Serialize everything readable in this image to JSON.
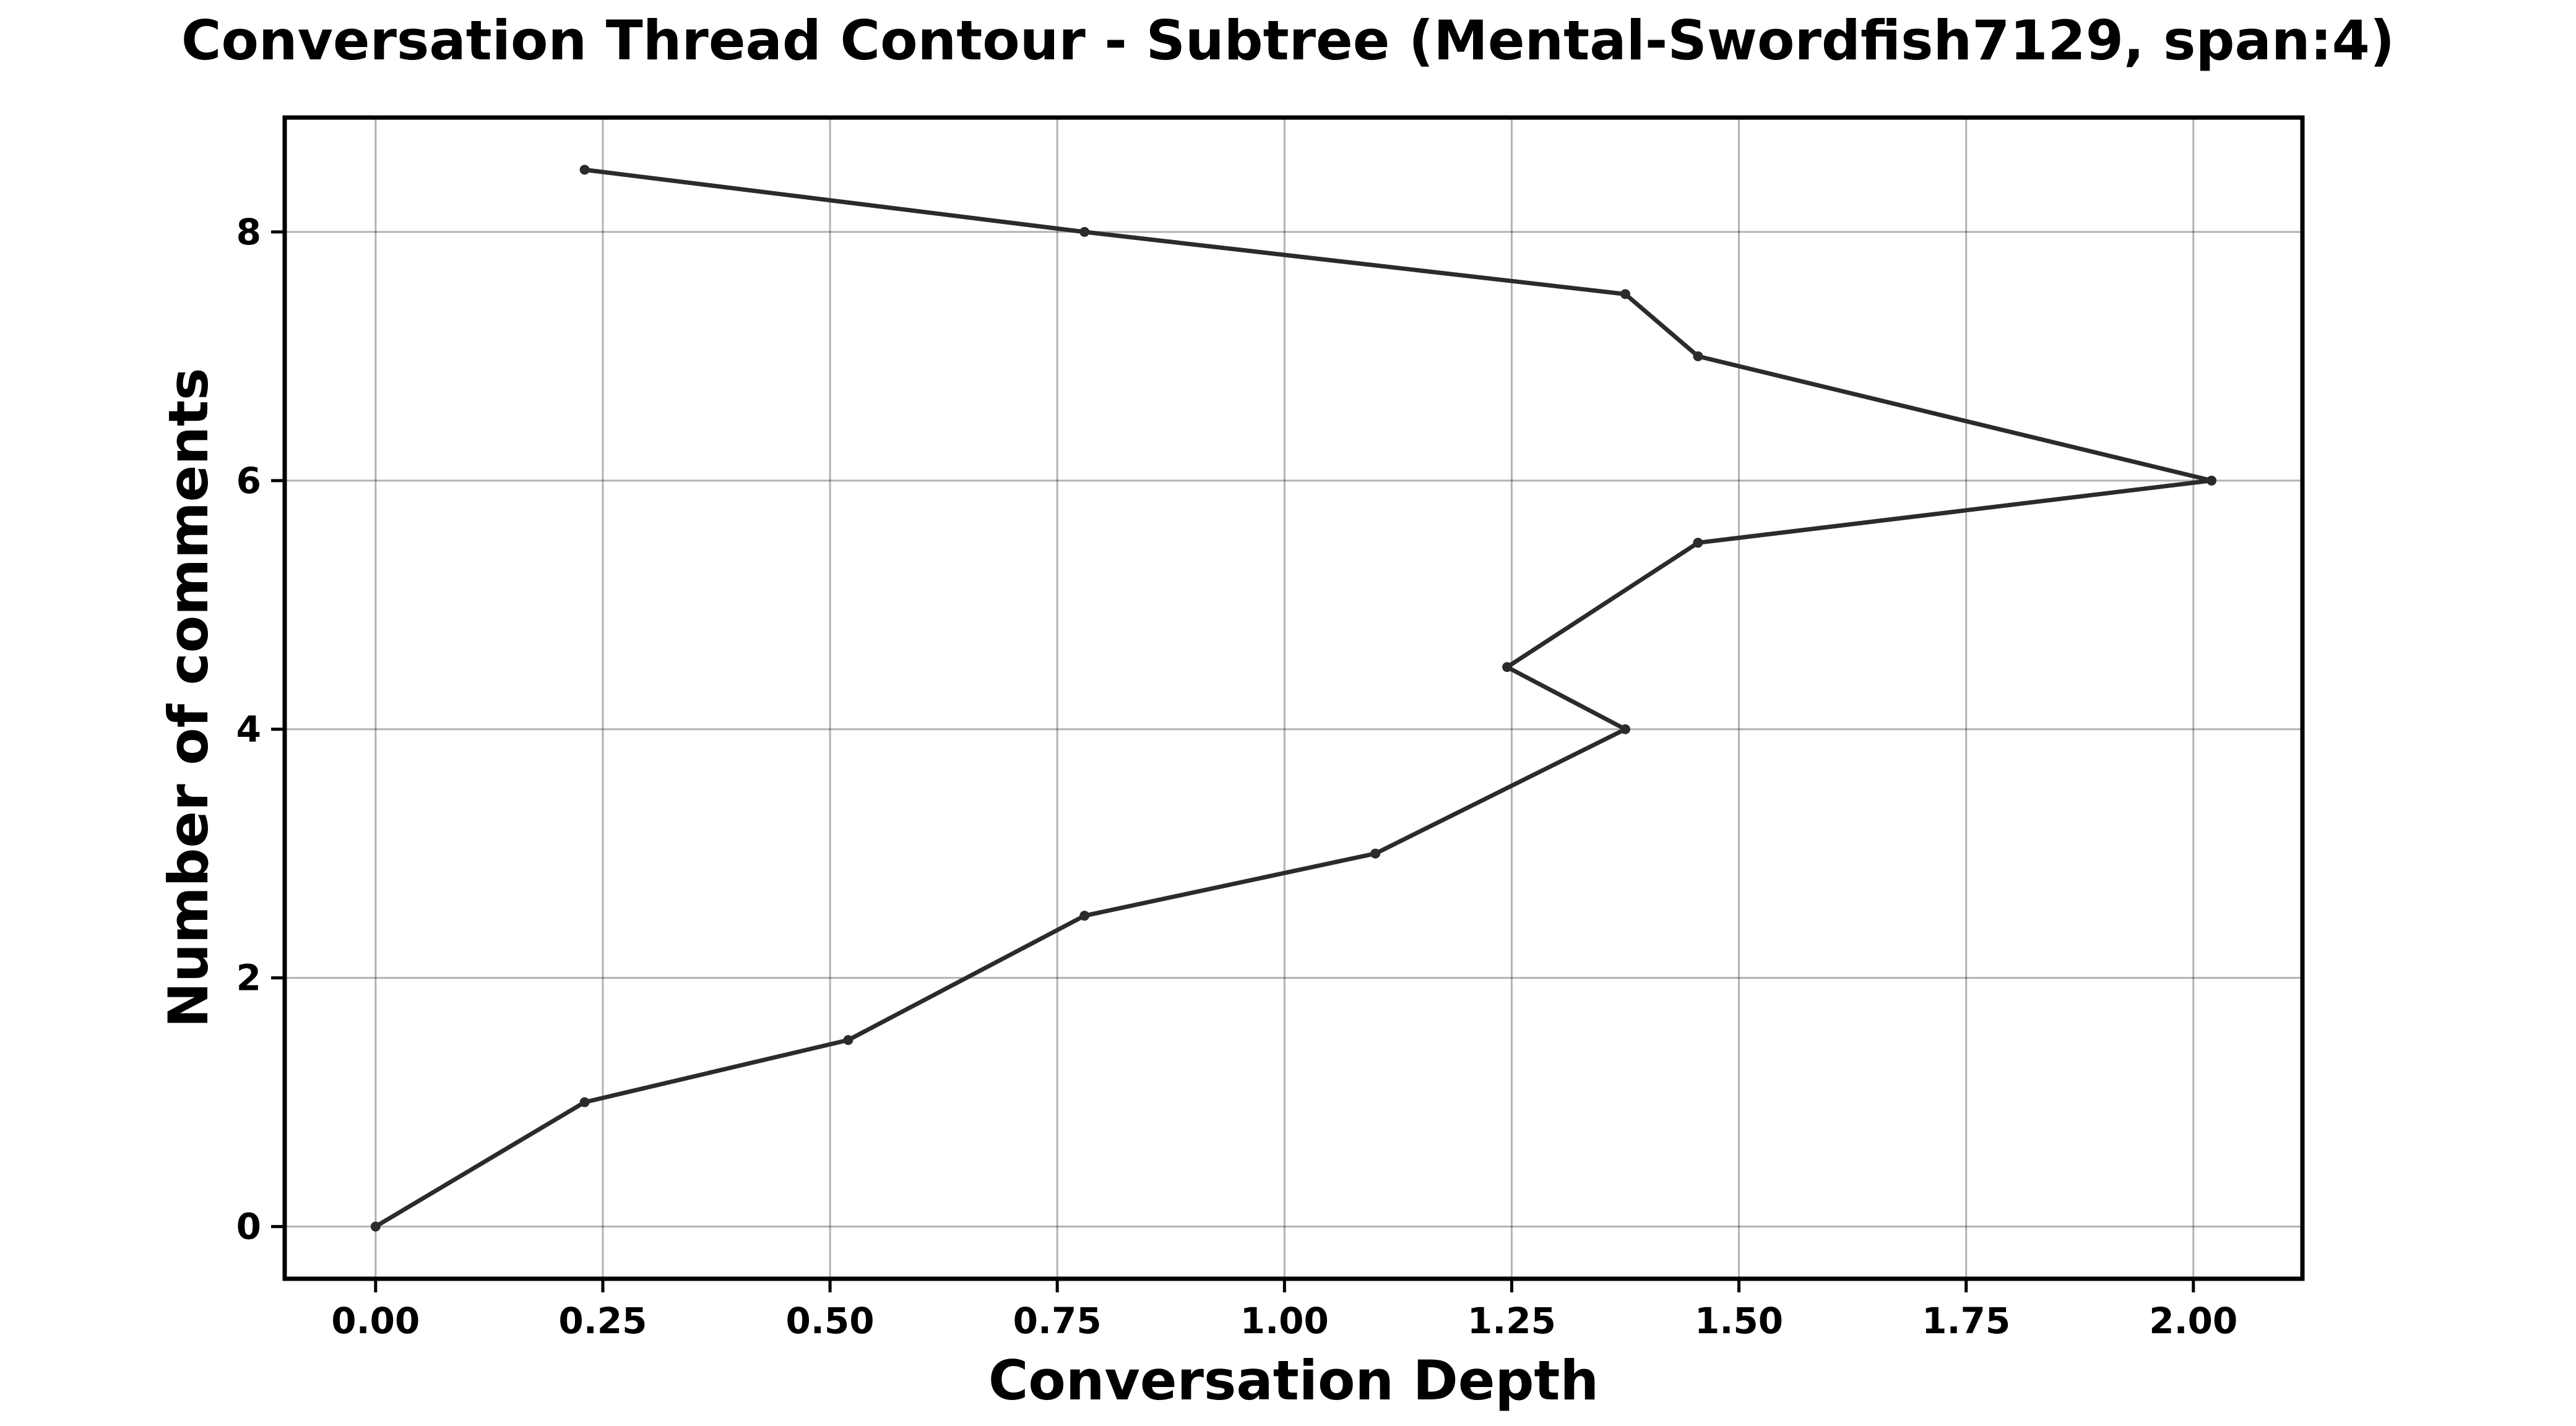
{
  "chart_data": {
    "type": "line",
    "title": "Conversation Thread Contour  - Subtree (Mental-Swordfish7129, span:4)",
    "xlabel": "Conversation Depth",
    "ylabel": "Number of comments",
    "xlim": [
      -0.1,
      2.12
    ],
    "ylim": [
      -0.42,
      8.92
    ],
    "xticks": [
      0.0,
      0.25,
      0.5,
      0.75,
      1.0,
      1.25,
      1.5,
      1.75,
      2.0
    ],
    "xtick_labels": [
      "0.00",
      "0.25",
      "0.50",
      "0.75",
      "1.00",
      "1.25",
      "1.50",
      "1.75",
      "2.00"
    ],
    "yticks": [
      0,
      2,
      4,
      6,
      8
    ],
    "ytick_labels": [
      "0",
      "2",
      "4",
      "6",
      "8"
    ],
    "grid": true,
    "series": [
      {
        "color": "#2b2b2b",
        "points": [
          {
            "x": 0.0,
            "y": 0.0
          },
          {
            "x": 0.23,
            "y": 1.0
          },
          {
            "x": 0.52,
            "y": 1.5
          },
          {
            "x": 0.78,
            "y": 2.5
          },
          {
            "x": 1.1,
            "y": 3.0
          },
          {
            "x": 1.375,
            "y": 4.0
          },
          {
            "x": 1.245,
            "y": 4.5
          },
          {
            "x": 1.455,
            "y": 5.5
          },
          {
            "x": 2.02,
            "y": 6.0
          },
          {
            "x": 1.455,
            "y": 7.0
          },
          {
            "x": 1.375,
            "y": 7.5
          },
          {
            "x": 0.78,
            "y": 8.0
          },
          {
            "x": 0.23,
            "y": 8.5
          }
        ]
      }
    ]
  }
}
